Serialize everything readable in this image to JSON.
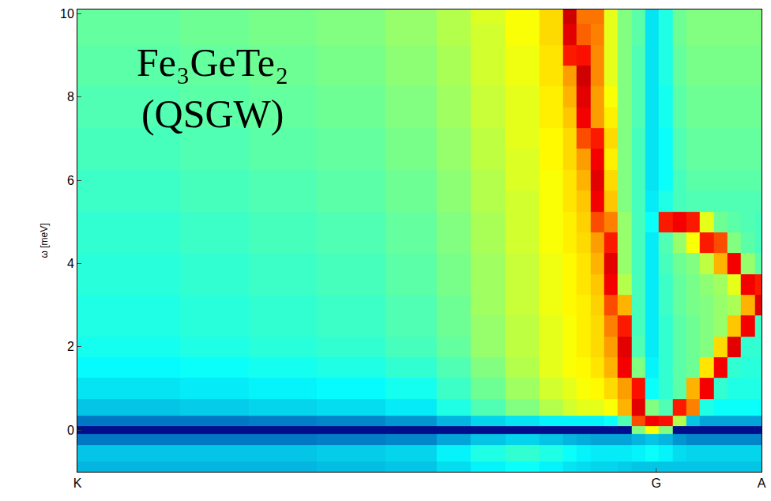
{
  "chart_data": {
    "type": "heatmap",
    "annotation": [
      "Fe₃GeTe₂",
      "(QSGW)"
    ],
    "y_label": "ω [meV]",
    "color": "Jet",
    "z_range": [
      0,
      1
    ],
    "xlim": [
      0,
      1
    ],
    "ylim": [
      -1,
      10.1
    ],
    "xticks": [
      {
        "value": 0,
        "label": "K"
      },
      {
        "value": 0.846,
        "label": "G"
      },
      {
        "value": 1,
        "label": "A"
      }
    ],
    "yticks": [
      0,
      2,
      4,
      6,
      8,
      10
    ],
    "x": [
      0.0,
      0.1,
      0.2,
      0.3,
      0.4,
      0.5,
      0.55,
      0.6,
      0.65,
      0.7,
      0.72,
      0.74,
      0.76,
      0.78,
      0.8,
      0.82,
      0.84,
      0.86,
      0.88,
      0.9,
      0.92,
      0.94,
      0.96,
      0.98,
      1.0
    ],
    "y": [
      -1,
      -0.5,
      -0.2,
      0,
      0.2,
      0.5,
      1,
      1.5,
      2,
      2.5,
      3,
      3.5,
      4,
      4.5,
      5,
      5.5,
      6,
      6.5,
      7,
      7.5,
      8,
      8.5,
      9,
      9.5,
      10
    ],
    "z": [
      [
        0.28,
        0.28,
        0.28,
        0.28,
        0.29,
        0.3,
        0.33,
        0.36,
        0.38,
        0.36,
        0.34,
        0.33,
        0.32,
        0.32,
        0.31,
        0.3,
        0.3,
        0.3,
        0.3,
        0.3,
        0.3,
        0.3,
        0.3,
        0.3,
        0.3
      ],
      [
        0.3,
        0.3,
        0.3,
        0.3,
        0.31,
        0.32,
        0.36,
        0.4,
        0.42,
        0.4,
        0.38,
        0.36,
        0.35,
        0.35,
        0.35,
        0.36,
        0.38,
        0.36,
        0.33,
        0.32,
        0.32,
        0.32,
        0.32,
        0.32,
        0.32
      ],
      [
        0.2,
        0.2,
        0.2,
        0.2,
        0.21,
        0.22,
        0.26,
        0.3,
        0.32,
        0.3,
        0.28,
        0.27,
        0.26,
        0.26,
        0.26,
        0.28,
        0.3,
        0.28,
        0.24,
        0.22,
        0.22,
        0.22,
        0.22,
        0.22,
        0.22
      ],
      [
        0.03,
        0.03,
        0.03,
        0.03,
        0.03,
        0.03,
        0.03,
        0.03,
        0.03,
        0.03,
        0.03,
        0.03,
        0.03,
        0.03,
        0.03,
        0.5,
        0.62,
        0.5,
        0.03,
        0.03,
        0.03,
        0.03,
        0.03,
        0.03,
        0.03
      ],
      [
        0.2,
        0.2,
        0.2,
        0.21,
        0.22,
        0.24,
        0.28,
        0.32,
        0.34,
        0.36,
        0.36,
        0.36,
        0.36,
        0.38,
        0.45,
        0.8,
        0.88,
        0.86,
        0.55,
        0.3,
        0.26,
        0.26,
        0.26,
        0.26,
        0.26
      ],
      [
        0.3,
        0.3,
        0.31,
        0.32,
        0.33,
        0.35,
        0.4,
        0.45,
        0.5,
        0.55,
        0.58,
        0.6,
        0.6,
        0.62,
        0.7,
        0.9,
        0.5,
        0.45,
        0.85,
        0.75,
        0.4,
        0.38,
        0.38,
        0.38,
        0.38
      ],
      [
        0.34,
        0.34,
        0.35,
        0.36,
        0.37,
        0.39,
        0.43,
        0.48,
        0.53,
        0.58,
        0.6,
        0.62,
        0.63,
        0.66,
        0.72,
        0.86,
        0.38,
        0.42,
        0.46,
        0.7,
        0.88,
        0.42,
        0.4,
        0.4,
        0.4
      ],
      [
        0.37,
        0.37,
        0.38,
        0.39,
        0.4,
        0.42,
        0.45,
        0.5,
        0.55,
        0.6,
        0.62,
        0.63,
        0.65,
        0.7,
        0.88,
        0.5,
        0.36,
        0.42,
        0.46,
        0.48,
        0.65,
        0.88,
        0.42,
        0.41,
        0.41
      ],
      [
        0.39,
        0.39,
        0.4,
        0.41,
        0.42,
        0.44,
        0.47,
        0.52,
        0.56,
        0.6,
        0.62,
        0.64,
        0.66,
        0.72,
        0.9,
        0.45,
        0.35,
        0.42,
        0.46,
        0.48,
        0.5,
        0.66,
        0.9,
        0.42,
        0.42
      ],
      [
        0.4,
        0.4,
        0.41,
        0.42,
        0.43,
        0.45,
        0.48,
        0.52,
        0.56,
        0.6,
        0.62,
        0.64,
        0.66,
        0.75,
        0.85,
        0.44,
        0.35,
        0.42,
        0.46,
        0.48,
        0.5,
        0.52,
        0.68,
        0.88,
        0.43
      ],
      [
        0.4,
        0.4,
        0.41,
        0.42,
        0.43,
        0.45,
        0.48,
        0.53,
        0.57,
        0.61,
        0.63,
        0.64,
        0.67,
        0.8,
        0.7,
        0.44,
        0.35,
        0.43,
        0.47,
        0.49,
        0.5,
        0.52,
        0.54,
        0.7,
        0.9
      ],
      [
        0.41,
        0.41,
        0.42,
        0.43,
        0.44,
        0.46,
        0.49,
        0.53,
        0.57,
        0.61,
        0.63,
        0.65,
        0.68,
        0.88,
        0.55,
        0.44,
        0.35,
        0.43,
        0.47,
        0.49,
        0.51,
        0.53,
        0.6,
        0.88,
        0.85
      ],
      [
        0.41,
        0.41,
        0.42,
        0.43,
        0.44,
        0.46,
        0.49,
        0.53,
        0.57,
        0.61,
        0.63,
        0.65,
        0.7,
        0.9,
        0.52,
        0.44,
        0.35,
        0.44,
        0.48,
        0.5,
        0.56,
        0.7,
        0.88,
        0.52,
        0.46
      ],
      [
        0.42,
        0.42,
        0.43,
        0.44,
        0.45,
        0.47,
        0.5,
        0.54,
        0.58,
        0.62,
        0.64,
        0.66,
        0.72,
        0.85,
        0.52,
        0.44,
        0.35,
        0.45,
        0.52,
        0.62,
        0.85,
        0.8,
        0.5,
        0.46,
        0.44
      ],
      [
        0.42,
        0.42,
        0.43,
        0.44,
        0.45,
        0.47,
        0.5,
        0.54,
        0.58,
        0.62,
        0.64,
        0.67,
        0.8,
        0.75,
        0.52,
        0.44,
        0.38,
        0.85,
        0.88,
        0.85,
        0.6,
        0.48,
        0.46,
        0.45,
        0.44
      ],
      [
        0.43,
        0.43,
        0.44,
        0.45,
        0.46,
        0.48,
        0.51,
        0.55,
        0.58,
        0.62,
        0.65,
        0.68,
        0.88,
        0.68,
        0.5,
        0.44,
        0.35,
        0.4,
        0.44,
        0.45,
        0.45,
        0.45,
        0.45,
        0.45,
        0.45
      ],
      [
        0.43,
        0.43,
        0.44,
        0.45,
        0.46,
        0.48,
        0.51,
        0.55,
        0.59,
        0.62,
        0.65,
        0.7,
        0.9,
        0.66,
        0.5,
        0.44,
        0.34,
        0.38,
        0.44,
        0.46,
        0.46,
        0.46,
        0.46,
        0.46,
        0.46
      ],
      [
        0.44,
        0.44,
        0.45,
        0.46,
        0.47,
        0.49,
        0.52,
        0.56,
        0.59,
        0.63,
        0.66,
        0.72,
        0.88,
        0.64,
        0.5,
        0.44,
        0.34,
        0.38,
        0.45,
        0.47,
        0.47,
        0.47,
        0.47,
        0.47,
        0.47
      ],
      [
        0.44,
        0.44,
        0.45,
        0.46,
        0.47,
        0.49,
        0.52,
        0.56,
        0.6,
        0.63,
        0.66,
        0.8,
        0.85,
        0.66,
        0.5,
        0.44,
        0.34,
        0.38,
        0.45,
        0.47,
        0.47,
        0.47,
        0.47,
        0.47,
        0.47
      ],
      [
        0.45,
        0.45,
        0.46,
        0.47,
        0.48,
        0.5,
        0.53,
        0.57,
        0.6,
        0.64,
        0.68,
        0.88,
        0.72,
        0.64,
        0.5,
        0.45,
        0.34,
        0.39,
        0.46,
        0.48,
        0.48,
        0.48,
        0.48,
        0.48,
        0.48
      ],
      [
        0.45,
        0.45,
        0.46,
        0.47,
        0.48,
        0.5,
        0.53,
        0.57,
        0.6,
        0.64,
        0.7,
        0.9,
        0.72,
        0.62,
        0.5,
        0.45,
        0.34,
        0.39,
        0.46,
        0.48,
        0.48,
        0.48,
        0.48,
        0.48,
        0.48
      ],
      [
        0.46,
        0.46,
        0.47,
        0.48,
        0.49,
        0.51,
        0.54,
        0.58,
        0.61,
        0.65,
        0.72,
        0.92,
        0.74,
        0.6,
        0.5,
        0.45,
        0.34,
        0.4,
        0.47,
        0.49,
        0.49,
        0.49,
        0.49,
        0.49,
        0.49
      ],
      [
        0.46,
        0.46,
        0.47,
        0.48,
        0.49,
        0.51,
        0.54,
        0.58,
        0.61,
        0.65,
        0.85,
        0.86,
        0.74,
        0.6,
        0.5,
        0.45,
        0.34,
        0.4,
        0.47,
        0.49,
        0.49,
        0.49,
        0.49,
        0.49,
        0.49
      ],
      [
        0.47,
        0.47,
        0.48,
        0.49,
        0.5,
        0.52,
        0.55,
        0.58,
        0.62,
        0.66,
        0.9,
        0.78,
        0.75,
        0.6,
        0.5,
        0.46,
        0.34,
        0.4,
        0.48,
        0.5,
        0.5,
        0.5,
        0.5,
        0.5,
        0.5
      ],
      [
        0.47,
        0.47,
        0.48,
        0.49,
        0.5,
        0.52,
        0.55,
        0.59,
        0.62,
        0.66,
        0.92,
        0.76,
        0.76,
        0.6,
        0.5,
        0.46,
        0.34,
        0.4,
        0.48,
        0.5,
        0.5,
        0.5,
        0.5,
        0.5,
        0.5
      ]
    ]
  }
}
